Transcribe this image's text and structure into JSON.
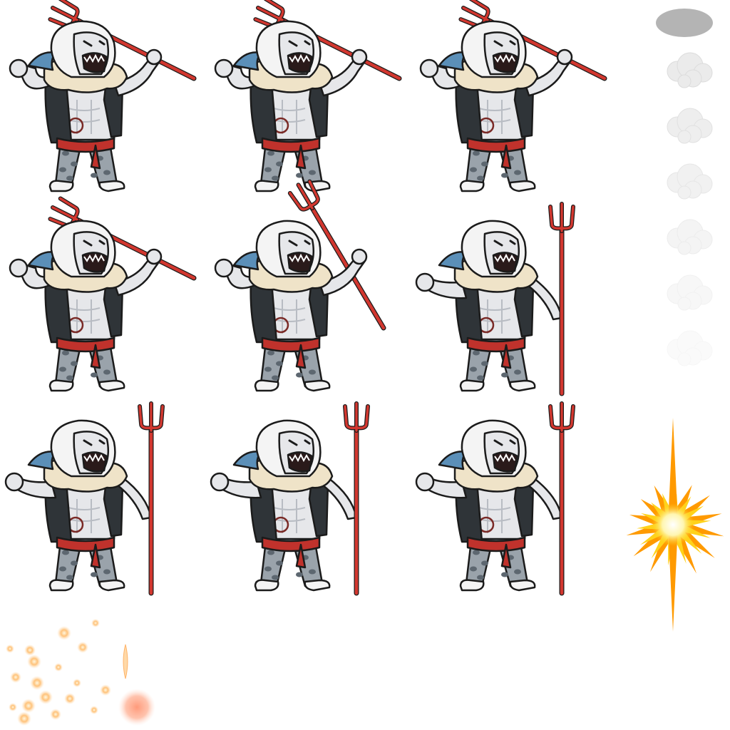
{
  "sprite_sheet": {
    "background": "#ffffff",
    "character": {
      "name": "",
      "skin_color": "#e6e7ea",
      "skin_shade": "#b8bcc3",
      "hair_color": "#f4f4f4",
      "vest_color": "#2f3438",
      "vest_dark": "#1e2225",
      "fur_collar_color": "#efe3c8",
      "sash_color": "#c0322c",
      "pants_color": "#9aa3ab",
      "pants_spots": "#5d6770",
      "fin_color": "#5b8fb8",
      "trident_color": "#d2372f",
      "mouth_color": "#2a1a1a",
      "outline_color": "#1b1b1b"
    },
    "frames": [
      {
        "id": 1,
        "row": 1,
        "col": 1,
        "pose": "trident-raised"
      },
      {
        "id": 2,
        "row": 1,
        "col": 2,
        "pose": "trident-raised"
      },
      {
        "id": 3,
        "row": 1,
        "col": 3,
        "pose": "trident-raised"
      },
      {
        "id": 4,
        "row": 2,
        "col": 1,
        "pose": "trident-raised"
      },
      {
        "id": 5,
        "row": 2,
        "col": 2,
        "pose": "trident-diagonal"
      },
      {
        "id": 6,
        "row": 2,
        "col": 3,
        "pose": "trident-upright"
      },
      {
        "id": 7,
        "row": 3,
        "col": 1,
        "pose": "trident-upright"
      },
      {
        "id": 8,
        "row": 3,
        "col": 2,
        "pose": "trident-upright"
      },
      {
        "id": 9,
        "row": 3,
        "col": 3,
        "pose": "trident-upright"
      }
    ],
    "effects": {
      "shadow_color": "#b4b4b4",
      "smoke_color": "#e8e8e8",
      "smoke_puffs": 6,
      "burst_colors": [
        "#ff9a00",
        "#ffd21a",
        "#fff6b0"
      ],
      "spark_color": "#ffc27a",
      "spark_count": 18,
      "orb_color": "#ff9a7a"
    }
  }
}
